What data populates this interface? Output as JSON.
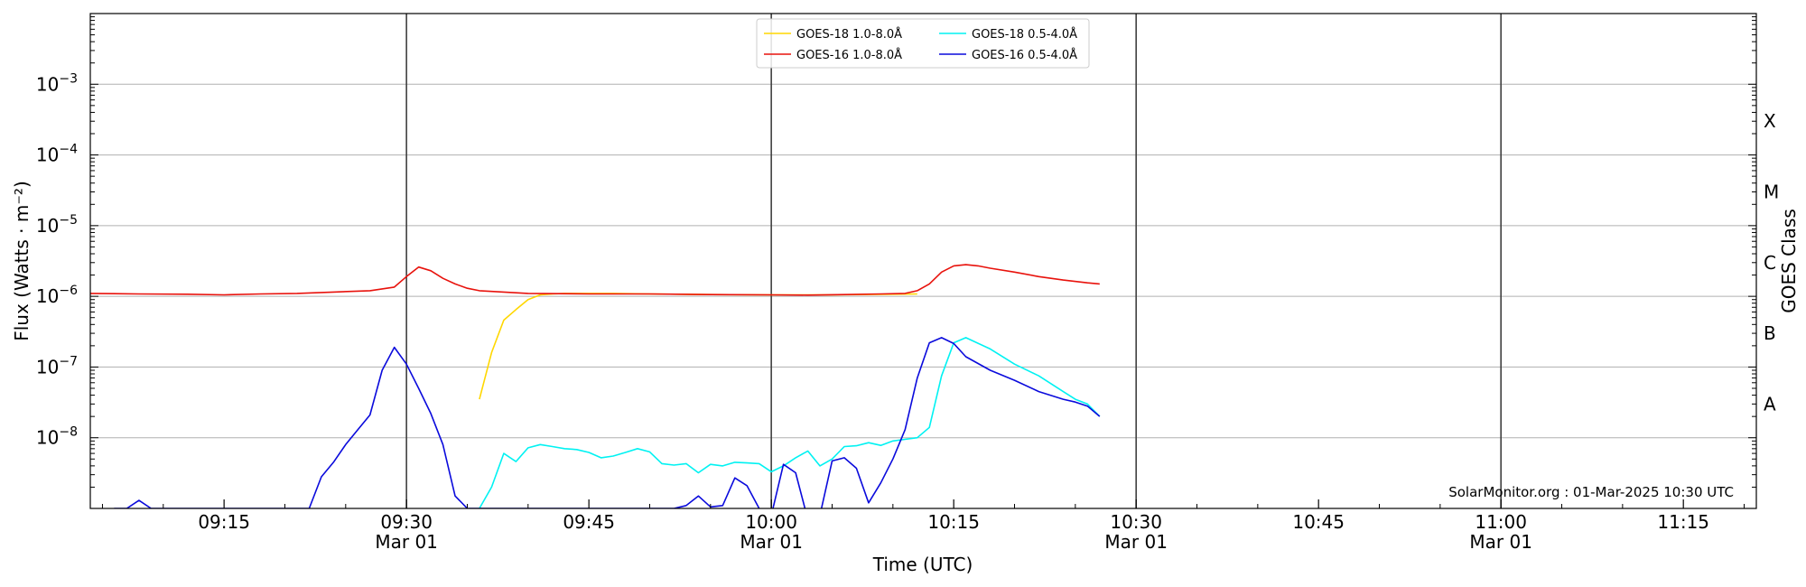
{
  "chart_data": {
    "type": "line",
    "xlabel": "Time (UTC)",
    "ylabel": "Flux (Watts · m⁻²)",
    "y2label": "GOES Class",
    "yscale": "log",
    "xlim": [
      "09:04",
      "11:21"
    ],
    "ylim": [
      1e-09,
      0.01
    ],
    "grid": "horizontal",
    "legend_position": "top-center",
    "credit": "SolarMonitor.org : 01-Mar-2025 10:30 UTC",
    "x_ticks": [
      {
        "time": "09:15",
        "label": "09:15",
        "sublabel": ""
      },
      {
        "time": "09:30",
        "label": "09:30",
        "sublabel": "Mar 01"
      },
      {
        "time": "09:45",
        "label": "09:45",
        "sublabel": ""
      },
      {
        "time": "10:00",
        "label": "10:00",
        "sublabel": "Mar 01"
      },
      {
        "time": "10:15",
        "label": "10:15",
        "sublabel": ""
      },
      {
        "time": "10:30",
        "label": "10:30",
        "sublabel": "Mar 01"
      },
      {
        "time": "10:45",
        "label": "10:45",
        "sublabel": ""
      },
      {
        "time": "11:00",
        "label": "11:00",
        "sublabel": "Mar 01"
      },
      {
        "time": "11:15",
        "label": "11:15",
        "sublabel": ""
      }
    ],
    "day_lines": [
      "09:30",
      "10:00",
      "10:30",
      "11:00"
    ],
    "y_ticks": [
      {
        "value": 1e-08,
        "base": "10",
        "exp": "−8"
      },
      {
        "value": 1e-07,
        "base": "10",
        "exp": "−7"
      },
      {
        "value": 1e-06,
        "base": "10",
        "exp": "−6"
      },
      {
        "value": 1e-05,
        "base": "10",
        "exp": "−5"
      },
      {
        "value": 0.0001,
        "base": "10",
        "exp": "−4"
      },
      {
        "value": 0.001,
        "base": "10",
        "exp": "−3"
      }
    ],
    "classes": [
      {
        "label": "A",
        "value": 3e-08
      },
      {
        "label": "B",
        "value": 3e-07
      },
      {
        "label": "C",
        "value": 3e-06
      },
      {
        "label": "M",
        "value": 3e-05
      },
      {
        "label": "X",
        "value": 0.0003
      }
    ],
    "series": [
      {
        "name": "GOES-18 1.0-8.0Å",
        "color": "#FFD700",
        "x": [
          "09:36",
          "09:37",
          "09:38",
          "09:39",
          "09:40",
          "09:41",
          "09:42",
          "09:43",
          "09:45",
          "09:47",
          "09:50",
          "09:55",
          "10:00",
          "10:05",
          "10:10",
          "10:12"
        ],
        "y": [
          3.5e-08,
          1.6e-07,
          4.6e-07,
          6.5e-07,
          9e-07,
          1.05e-06,
          1.08e-06,
          1.1e-06,
          1.1e-06,
          1.1e-06,
          1.08e-06,
          1.06e-06,
          1.05e-06,
          1.05e-06,
          1.07e-06,
          1.08e-06
        ]
      },
      {
        "name": "GOES-16 1.0-8.0Å",
        "color": "#E8120C",
        "x": [
          "09:04",
          "09:08",
          "09:12",
          "09:15",
          "09:18",
          "09:21",
          "09:24",
          "09:27",
          "09:29",
          "09:30",
          "09:31",
          "09:32",
          "09:33",
          "09:34",
          "09:35",
          "09:36",
          "09:38",
          "09:40",
          "09:45",
          "09:50",
          "09:55",
          "10:00",
          "10:03",
          "10:06",
          "10:09",
          "10:11",
          "10:12",
          "10:13",
          "10:14",
          "10:15",
          "10:16",
          "10:17",
          "10:18",
          "10:20",
          "10:22",
          "10:24",
          "10:26",
          "10:27"
        ],
        "y": [
          1.1e-06,
          1.08e-06,
          1.07e-06,
          1.05e-06,
          1.08e-06,
          1.1e-06,
          1.15e-06,
          1.2e-06,
          1.35e-06,
          1.9e-06,
          2.6e-06,
          2.3e-06,
          1.8e-06,
          1.5e-06,
          1.3e-06,
          1.2e-06,
          1.15e-06,
          1.1e-06,
          1.08e-06,
          1.08e-06,
          1.06e-06,
          1.05e-06,
          1.04e-06,
          1.06e-06,
          1.08e-06,
          1.1e-06,
          1.2e-06,
          1.5e-06,
          2.2e-06,
          2.7e-06,
          2.8e-06,
          2.7e-06,
          2.5e-06,
          2.2e-06,
          1.9e-06,
          1.7e-06,
          1.55e-06,
          1.5e-06
        ]
      },
      {
        "name": "GOES-18 0.5-4.0Å",
        "color": "#00F2F2",
        "x": [
          "09:36",
          "09:37",
          "09:38",
          "09:39",
          "09:40",
          "09:41",
          "09:42",
          "09:43",
          "09:44",
          "09:45",
          "09:46",
          "09:47",
          "09:48",
          "09:49",
          "09:50",
          "09:51",
          "09:52",
          "09:53",
          "09:54",
          "09:55",
          "09:56",
          "09:57",
          "09:58",
          "09:59",
          "10:00",
          "10:01",
          "10:02",
          "10:03",
          "10:04",
          "10:05",
          "10:06",
          "10:07",
          "10:08",
          "10:09",
          "10:10",
          "10:11",
          "10:12",
          "10:13",
          "10:14",
          "10:15",
          "10:16",
          "10:18",
          "10:20",
          "10:22",
          "10:24",
          "10:25",
          "10:26",
          "10:27"
        ],
        "y": [
          1e-09,
          2e-09,
          6e-09,
          4.6e-09,
          7.2e-09,
          8e-09,
          7.5e-09,
          7e-09,
          6.8e-09,
          6.2e-09,
          5.2e-09,
          5.5e-09,
          6.2e-09,
          7e-09,
          6.3e-09,
          4.3e-09,
          4.1e-09,
          4.3e-09,
          3.2e-09,
          4.2e-09,
          4e-09,
          4.5e-09,
          4.4e-09,
          4.3e-09,
          3.3e-09,
          4e-09,
          5.2e-09,
          6.5e-09,
          4e-09,
          5e-09,
          7.5e-09,
          7.7e-09,
          8.5e-09,
          7.8e-09,
          9e-09,
          9.5e-09,
          1e-08,
          1.4e-08,
          7.5e-08,
          2.2e-07,
          2.6e-07,
          1.8e-07,
          1.1e-07,
          7.5e-08,
          4.5e-08,
          3.5e-08,
          3e-08,
          2e-08
        ]
      },
      {
        "name": "GOES-16 0.5-4.0Å",
        "color": "#0A0ADC",
        "x": [
          "09:05",
          "09:06",
          "09:07",
          "09:08",
          "09:09",
          "09:10",
          "09:15",
          "09:20",
          "09:22",
          "09:23",
          "09:24",
          "09:25",
          "09:26",
          "09:27",
          "09:28",
          "09:29",
          "09:30",
          "09:31",
          "09:32",
          "09:33",
          "09:34",
          "09:35",
          "09:36",
          "09:37",
          "09:40",
          "09:45",
          "09:50",
          "09:52",
          "09:53",
          "09:54",
          "09:55",
          "09:56",
          "09:57",
          "09:58",
          "09:59",
          "10:00",
          "10:01",
          "10:02",
          "10:03",
          "10:04",
          "10:05",
          "10:06",
          "10:07",
          "10:08",
          "10:09",
          "10:10",
          "10:11",
          "10:12",
          "10:13",
          "10:14",
          "10:15",
          "10:16",
          "10:18",
          "10:20",
          "10:22",
          "10:24",
          "10:25",
          "10:26",
          "10:27"
        ],
        "y": [
          8e-10,
          1e-09,
          1e-09,
          1.3e-09,
          1e-09,
          1e-09,
          1e-09,
          1e-09,
          1e-09,
          2.8e-09,
          4.5e-09,
          8e-09,
          1.3e-08,
          2.1e-08,
          9e-08,
          1.9e-07,
          1.1e-07,
          5e-08,
          2.2e-08,
          8e-09,
          1.5e-09,
          1e-09,
          1e-09,
          1e-09,
          1e-09,
          1e-09,
          1e-09,
          1e-09,
          1.1e-09,
          1.5e-09,
          1.05e-09,
          1.1e-09,
          2.7e-09,
          2.1e-09,
          1e-09,
          8e-10,
          4.2e-09,
          3.2e-09,
          7e-10,
          8e-10,
          4.7e-09,
          5.2e-09,
          3.7e-09,
          1.2e-09,
          2.3e-09,
          5e-09,
          1.3e-08,
          7e-08,
          2.2e-07,
          2.6e-07,
          2.15e-07,
          1.4e-07,
          9e-08,
          6.5e-08,
          4.5e-08,
          3.5e-08,
          3.2e-08,
          2.8e-08,
          2e-08
        ]
      }
    ]
  }
}
